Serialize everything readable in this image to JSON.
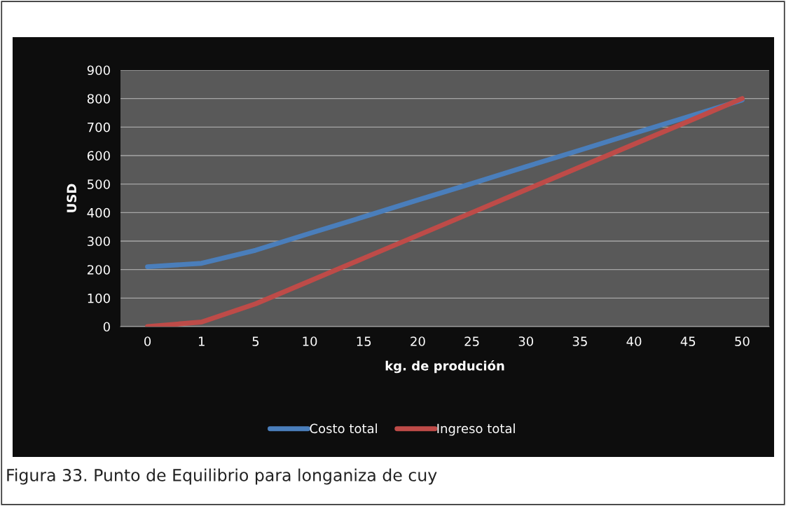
{
  "chart_data": {
    "type": "line",
    "categories": [
      "0",
      "1",
      "5",
      "10",
      "15",
      "20",
      "25",
      "30",
      "35",
      "40",
      "45",
      "50"
    ],
    "series": [
      {
        "name": "Costo total",
        "color": "#4a7ebb",
        "values": [
          210,
          222,
          268,
          327,
          385,
          444,
          502,
          561,
          619,
          678,
          736,
          795
        ]
      },
      {
        "name": "Ingreso total",
        "color": "#be4b48",
        "values": [
          0,
          16,
          80,
          160,
          240,
          320,
          400,
          480,
          560,
          640,
          720,
          800
        ]
      }
    ],
    "xlabel": "kg. de produción",
    "ylabel": "USD",
    "ylim": [
      0,
      900
    ],
    "yticks": [
      0,
      100,
      200,
      300,
      400,
      500,
      600,
      700,
      800,
      900
    ],
    "grid": "y",
    "legend": "bottom",
    "marker": "none",
    "line_style": "solid",
    "annotations": [
      "Figura 33. Punto de Equilibrio para longaniza de cuy"
    ]
  }
}
